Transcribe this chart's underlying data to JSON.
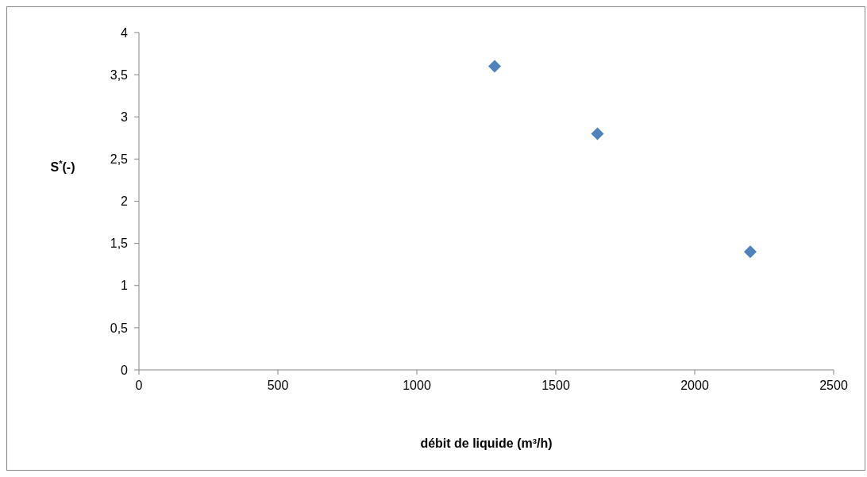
{
  "chart_data": {
    "type": "scatter",
    "xlabel": "débit de liquide (m³/h)",
    "ylabel": "S$^{*}$(-)",
    "x": [
      1280,
      1650,
      2200
    ],
    "series": [
      {
        "color": "#4f81bd",
        "values": [
          3.6,
          2.8,
          1.4
        ]
      }
    ],
    "xlim": [
      0,
      2500
    ],
    "xticks": [
      0,
      500,
      1000,
      1500,
      2000,
      2500
    ],
    "ylim": [
      0,
      4
    ],
    "yticks": [
      0,
      {
        "value": 0.5,
        "label": "0,5"
      },
      1,
      {
        "value": 1.5,
        "label": "1,5"
      },
      2,
      {
        "value": 2.5,
        "label": "2,5"
      },
      3,
      {
        "value": 3.5,
        "label": "3,5"
      },
      4
    ],
    "marker": "diamond"
  }
}
